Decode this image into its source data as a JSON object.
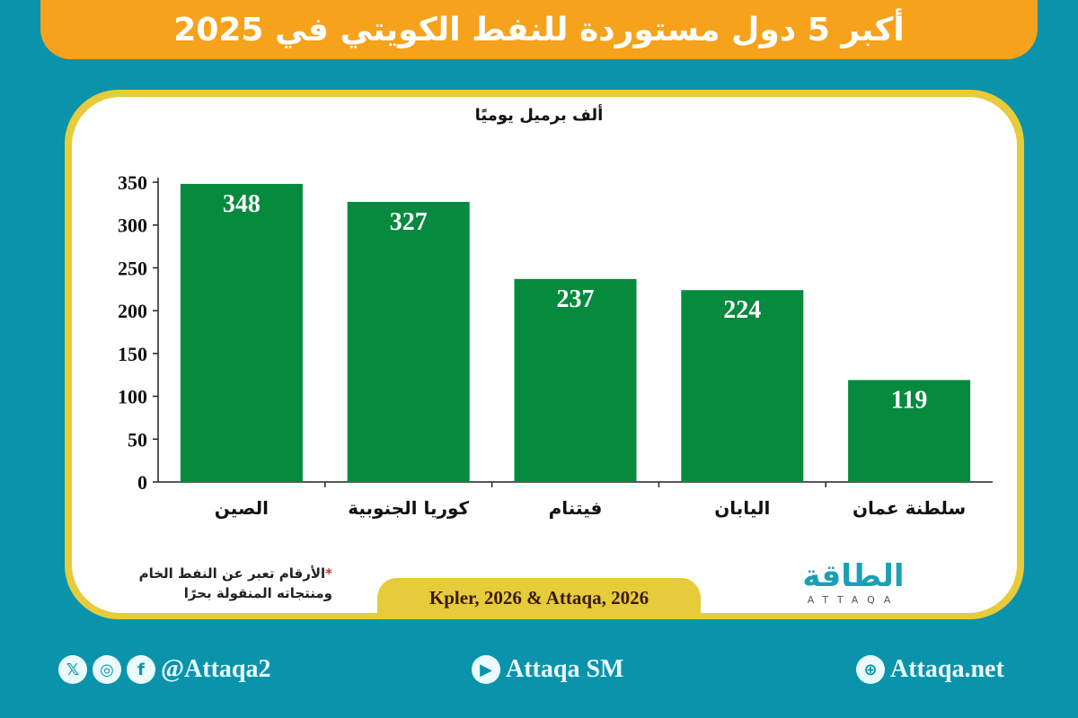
{
  "title": "أكبر 5 دول مستوردة للنفط الكويتي في 2025",
  "chart_data": {
    "type": "bar",
    "title": "",
    "ylabel": "ألف برميل يوميًا",
    "xlabel": "",
    "categories": [
      "الصين",
      "كوريا الجنوبية",
      "فيتنام",
      "اليابان",
      "سلطنة عمان"
    ],
    "values": [
      348,
      327,
      237,
      224,
      119
    ],
    "ylim": [
      0,
      350
    ],
    "yticks": [
      0,
      50,
      100,
      150,
      200,
      250,
      300,
      350
    ],
    "grid": false,
    "bar_color": "#058a3e",
    "label_color": "#ffffff"
  },
  "note": {
    "star": "*",
    "line1": "الأرقام تعبر عن النفط الخام",
    "line2": "ومنتجاته المنقولة بحرًا"
  },
  "source": "Kpler, 2026 & Attaqa, 2026",
  "logo": {
    "ar": "الطاقة",
    "en": "ATTAQA"
  },
  "footer": {
    "social_handle": "@Attaqa2",
    "youtube": "Attaqa SM",
    "website": "Attaqa.net",
    "icons": [
      "x-icon",
      "instagram-icon",
      "facebook-icon",
      "youtube-icon",
      "globe-icon"
    ]
  },
  "colors": {
    "background": "#0b93ab",
    "banner": "#f6a21c",
    "frame": "#e6cb3a"
  }
}
